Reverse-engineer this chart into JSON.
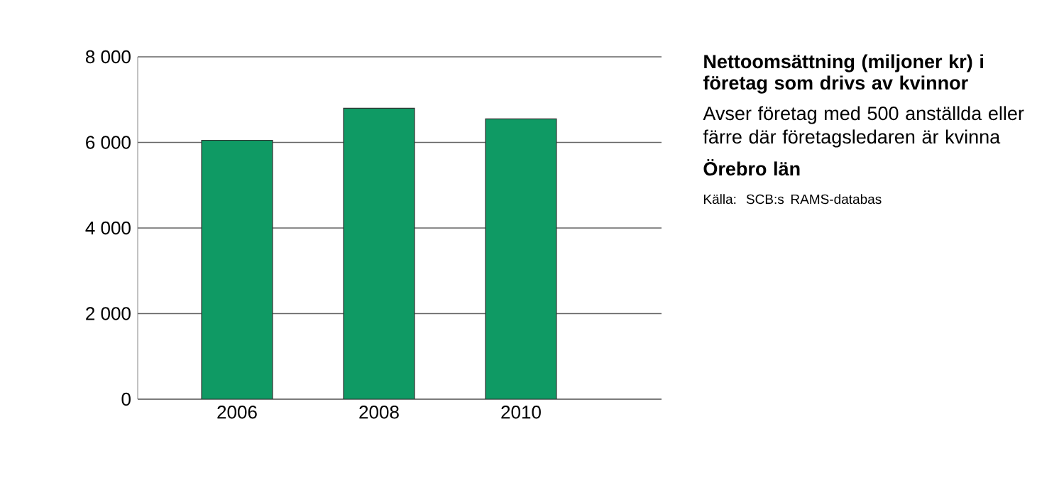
{
  "chart_data": {
    "type": "bar",
    "title": "Nettoomsättning (miljoner kr) i företag som drivs av kvinnor",
    "subtitle": "Avser företag med 500 anställda eller färre där företagsledaren är kvinna",
    "annotations": [
      "Örebro län",
      "Källa: SCB:s RAMS-databas"
    ],
    "categories": [
      "2006",
      "2008",
      "2010"
    ],
    "values": [
      6050,
      6800,
      6550
    ],
    "color": "#0f9a64",
    "ylim": [
      0,
      8000
    ],
    "yticks": [
      {
        "value": 0,
        "label": "0"
      },
      {
        "value": 2000,
        "label": "2 000"
      },
      {
        "value": 4000,
        "label": "4 000"
      },
      {
        "value": 6000,
        "label": "6 000"
      },
      {
        "value": 8000,
        "label": "8 000"
      }
    ],
    "grid": "y"
  }
}
